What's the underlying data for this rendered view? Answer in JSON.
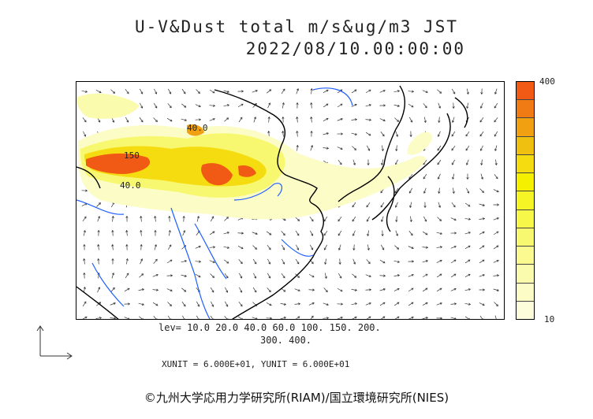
{
  "title": {
    "line1": "U-V&Dust total m/s&ug/m3 JST",
    "line2": "2022/08/10.00:00:00"
  },
  "colorbar": {
    "max_label": "400",
    "min_label": "10",
    "colors": [
      "#f05a14",
      "#f07a14",
      "#f0a010",
      "#f0c010",
      "#f5dc10",
      "#f5f000",
      "#f5f526",
      "#f7f74a",
      "#f8f870",
      "#fafa90",
      "#fbfbae",
      "#fcfcc6",
      "#fdfddc"
    ]
  },
  "levels": {
    "line1": "lev= 10.0 20.0 40.0 60.0 100. 150. 200.",
    "line2": "300. 400."
  },
  "vector_units": "XUNIT = 6.000E+01, YUNIT = 6.000E+01",
  "contour_labels": [
    "40.0",
    "150",
    "40.0"
  ],
  "credit": "©九州大学応用力学研究所(RIAM)/国立環境研究所(NIES)",
  "colors": {
    "coast": "#000000",
    "rivers": "#1f5fff",
    "hot": "#f05a14"
  }
}
